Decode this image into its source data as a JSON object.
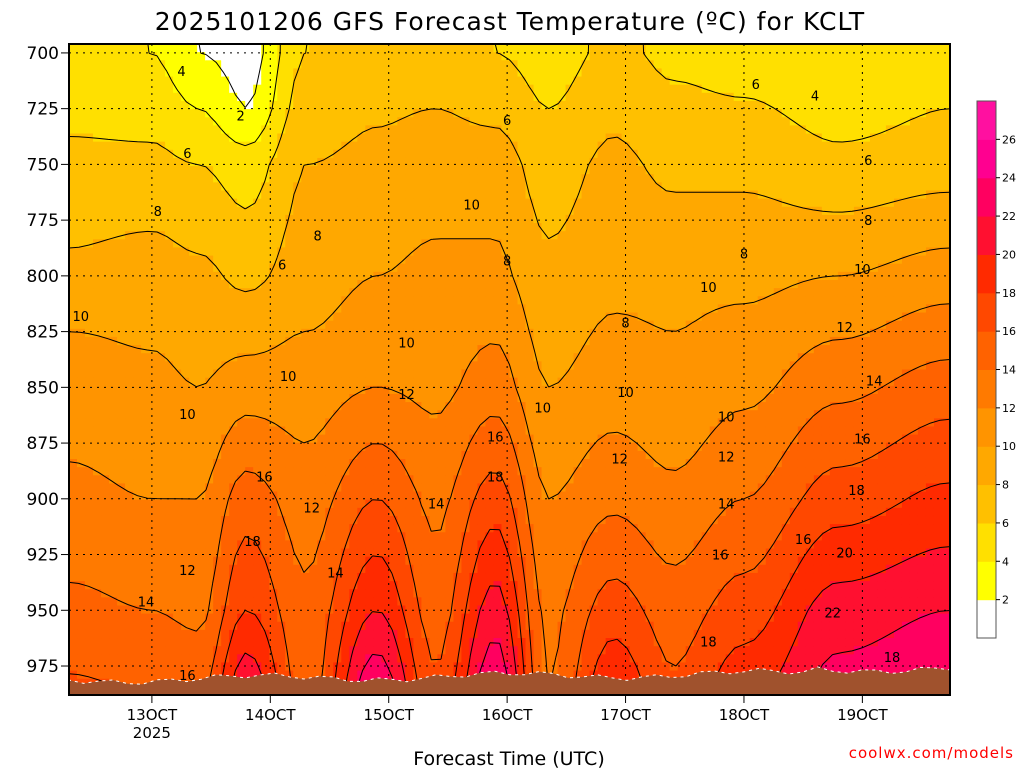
{
  "chart_data": {
    "type": "heatmap",
    "title": "2025101206 GFS Forecast Temperature (ºC) for KCLT",
    "xlabel": "Forecast Time (UTC)",
    "credit": "coolwx.com/models",
    "y_axis": {
      "reversed": true,
      "ylim": [
        988,
        696
      ],
      "ticks": [
        {
          "value": 700,
          "label": "700"
        },
        {
          "value": 725,
          "label": "725"
        },
        {
          "value": 750,
          "label": "750"
        },
        {
          "value": 775,
          "label": "775"
        },
        {
          "value": 800,
          "label": "800"
        },
        {
          "value": 825,
          "label": "825"
        },
        {
          "value": 850,
          "label": "850"
        },
        {
          "value": 875,
          "label": "875"
        },
        {
          "value": 900,
          "label": "900"
        },
        {
          "value": 925,
          "label": "925"
        },
        {
          "value": 950,
          "label": "950"
        },
        {
          "value": 975,
          "label": "975"
        }
      ]
    },
    "x_axis": {
      "xlim": [
        12.3,
        19.74
      ],
      "ticks": [
        {
          "value": 13,
          "label": "13OCT",
          "sublabel": "2025"
        },
        {
          "value": 14,
          "label": "14OCT",
          "sublabel": ""
        },
        {
          "value": 15,
          "label": "15OCT",
          "sublabel": ""
        },
        {
          "value": 16,
          "label": "16OCT",
          "sublabel": ""
        },
        {
          "value": 17,
          "label": "17OCT",
          "sublabel": ""
        },
        {
          "value": 18,
          "label": "18OCT",
          "sublabel": ""
        },
        {
          "value": 19,
          "label": "19OCT",
          "sublabel": ""
        }
      ]
    },
    "grid": true,
    "colorbar": {
      "placement": "right",
      "levels": [
        2,
        4,
        6,
        8,
        10,
        12,
        14,
        16,
        18,
        20,
        22,
        24,
        26
      ],
      "colors": [
        "#ffffff",
        "#ffff00",
        "#ffe000",
        "#ffc000",
        "#ffa800",
        "#ff9400",
        "#ff7a00",
        "#ff6200",
        "#ff4800",
        "#ff2a00",
        "#ff1030",
        "#ff0060",
        "#ff0090",
        "#ff10a0"
      ]
    },
    "profiles": [
      {
        "x": 12.3,
        "levels": [
          [
            700,
            4.5
          ],
          [
            750,
            6.5
          ],
          [
            800,
            8.5
          ],
          [
            825,
            10
          ],
          [
            850,
            11
          ],
          [
            900,
            12.5
          ],
          [
            950,
            14.5
          ],
          [
            988,
            16.5
          ]
        ]
      },
      {
        "x": 13.0,
        "levels": [
          [
            700,
            4
          ],
          [
            750,
            6.5
          ],
          [
            800,
            9
          ],
          [
            850,
            10.5
          ],
          [
            900,
            12
          ],
          [
            950,
            14
          ],
          [
            988,
            16
          ]
        ]
      },
      {
        "x": 13.4,
        "levels": [
          [
            700,
            2
          ],
          [
            750,
            6
          ],
          [
            800,
            8.5
          ],
          [
            850,
            10
          ],
          [
            900,
            12
          ],
          [
            950,
            13.5
          ],
          [
            988,
            15.5
          ]
        ]
      },
      {
        "x": 13.8,
        "levels": [
          [
            700,
            1
          ],
          [
            725,
            2
          ],
          [
            750,
            5
          ],
          [
            800,
            7.5
          ],
          [
            850,
            11
          ],
          [
            900,
            15
          ],
          [
            950,
            18
          ],
          [
            988,
            22
          ]
        ]
      },
      {
        "x": 14.3,
        "levels": [
          [
            700,
            6
          ],
          [
            750,
            8
          ],
          [
            800,
            9
          ],
          [
            850,
            11
          ],
          [
            900,
            13
          ],
          [
            950,
            14.5
          ],
          [
            988,
            15
          ]
        ]
      },
      {
        "x": 14.9,
        "levels": [
          [
            700,
            7
          ],
          [
            750,
            8.5
          ],
          [
            800,
            10
          ],
          [
            850,
            12
          ],
          [
            900,
            16
          ],
          [
            950,
            20
          ],
          [
            988,
            24
          ]
        ]
      },
      {
        "x": 15.4,
        "levels": [
          [
            700,
            7
          ],
          [
            750,
            9
          ],
          [
            800,
            10.5
          ],
          [
            850,
            11.5
          ],
          [
            900,
            13.5
          ],
          [
            950,
            15
          ],
          [
            988,
            16.5
          ]
        ]
      },
      {
        "x": 15.9,
        "levels": [
          [
            700,
            6
          ],
          [
            750,
            9
          ],
          [
            800,
            10.5
          ],
          [
            850,
            13
          ],
          [
            900,
            17
          ],
          [
            950,
            21
          ],
          [
            988,
            24
          ]
        ]
      },
      {
        "x": 16.35,
        "levels": [
          [
            700,
            5
          ],
          [
            750,
            7
          ],
          [
            800,
            8.5
          ],
          [
            850,
            10
          ],
          [
            900,
            12
          ],
          [
            950,
            13.5
          ],
          [
            988,
            14
          ]
        ]
      },
      {
        "x": 16.9,
        "levels": [
          [
            700,
            6.5
          ],
          [
            750,
            8.5
          ],
          [
            800,
            9.5
          ],
          [
            850,
            11
          ],
          [
            900,
            13.5
          ],
          [
            950,
            17
          ],
          [
            988,
            20
          ]
        ]
      },
      {
        "x": 17.4,
        "levels": [
          [
            700,
            5.5
          ],
          [
            750,
            7.5
          ],
          [
            800,
            9.5
          ],
          [
            850,
            10.5
          ],
          [
            900,
            12.5
          ],
          [
            950,
            15
          ],
          [
            988,
            16.5
          ]
        ]
      },
      {
        "x": 18.0,
        "levels": [
          [
            700,
            5
          ],
          [
            750,
            7.5
          ],
          [
            800,
            9.5
          ],
          [
            850,
            11.5
          ],
          [
            900,
            14
          ],
          [
            950,
            17
          ],
          [
            988,
            19.5
          ]
        ]
      },
      {
        "x": 18.8,
        "levels": [
          [
            700,
            4
          ],
          [
            750,
            6.5
          ],
          [
            800,
            10
          ],
          [
            850,
            13.5
          ],
          [
            900,
            17
          ],
          [
            950,
            21
          ],
          [
            988,
            23
          ]
        ]
      },
      {
        "x": 19.74,
        "levels": [
          [
            700,
            5
          ],
          [
            750,
            7
          ],
          [
            800,
            11
          ],
          [
            850,
            15
          ],
          [
            900,
            18.5
          ],
          [
            950,
            22
          ],
          [
            988,
            24
          ]
        ]
      }
    ],
    "contour_labels": [
      {
        "x": 13.25,
        "p": 708,
        "text": "4"
      },
      {
        "x": 13.75,
        "p": 728,
        "text": "2"
      },
      {
        "x": 13.3,
        "p": 745,
        "text": "6"
      },
      {
        "x": 13.05,
        "p": 771,
        "text": "8"
      },
      {
        "x": 12.4,
        "p": 818,
        "text": "10"
      },
      {
        "x": 13.3,
        "p": 862,
        "text": "10"
      },
      {
        "x": 13.3,
        "p": 932,
        "text": "12"
      },
      {
        "x": 12.95,
        "p": 946,
        "text": "14"
      },
      {
        "x": 13.3,
        "p": 979,
        "text": "16"
      },
      {
        "x": 14.1,
        "p": 795,
        "text": "6"
      },
      {
        "x": 14.4,
        "p": 782,
        "text": "8"
      },
      {
        "x": 14.15,
        "p": 845,
        "text": "10"
      },
      {
        "x": 14.35,
        "p": 904,
        "text": "12"
      },
      {
        "x": 14.55,
        "p": 933,
        "text": "14"
      },
      {
        "x": 13.95,
        "p": 890,
        "text": "16"
      },
      {
        "x": 13.85,
        "p": 919,
        "text": "18"
      },
      {
        "x": 15.15,
        "p": 830,
        "text": "10"
      },
      {
        "x": 15.15,
        "p": 853,
        "text": "12"
      },
      {
        "x": 15.4,
        "p": 902,
        "text": "14"
      },
      {
        "x": 15.7,
        "p": 768,
        "text": "10"
      },
      {
        "x": 16.0,
        "p": 730,
        "text": "6"
      },
      {
        "x": 16.0,
        "p": 793,
        "text": "8"
      },
      {
        "x": 16.3,
        "p": 859,
        "text": "10"
      },
      {
        "x": 15.9,
        "p": 872,
        "text": "16"
      },
      {
        "x": 15.9,
        "p": 890,
        "text": "18"
      },
      {
        "x": 17.0,
        "p": 821,
        "text": "8"
      },
      {
        "x": 17.0,
        "p": 852,
        "text": "10"
      },
      {
        "x": 16.95,
        "p": 882,
        "text": "12"
      },
      {
        "x": 17.7,
        "p": 805,
        "text": "10"
      },
      {
        "x": 18.1,
        "p": 714,
        "text": "6"
      },
      {
        "x": 18.6,
        "p": 719,
        "text": "4"
      },
      {
        "x": 19.05,
        "p": 748,
        "text": "6"
      },
      {
        "x": 18.0,
        "p": 790,
        "text": "8"
      },
      {
        "x": 19.05,
        "p": 775,
        "text": "8"
      },
      {
        "x": 19.0,
        "p": 797,
        "text": "10"
      },
      {
        "x": 18.85,
        "p": 823,
        "text": "12"
      },
      {
        "x": 19.1,
        "p": 847,
        "text": "14"
      },
      {
        "x": 17.85,
        "p": 863,
        "text": "10"
      },
      {
        "x": 17.85,
        "p": 881,
        "text": "12"
      },
      {
        "x": 17.85,
        "p": 902,
        "text": "14"
      },
      {
        "x": 17.8,
        "p": 925,
        "text": "16"
      },
      {
        "x": 17.7,
        "p": 964,
        "text": "18"
      },
      {
        "x": 19.0,
        "p": 873,
        "text": "16"
      },
      {
        "x": 18.95,
        "p": 896,
        "text": "18"
      },
      {
        "x": 18.5,
        "p": 918,
        "text": "16"
      },
      {
        "x": 18.85,
        "p": 924,
        "text": "20"
      },
      {
        "x": 18.75,
        "p": 951,
        "text": "22"
      },
      {
        "x": 19.25,
        "p": 971,
        "text": "18"
      }
    ]
  }
}
